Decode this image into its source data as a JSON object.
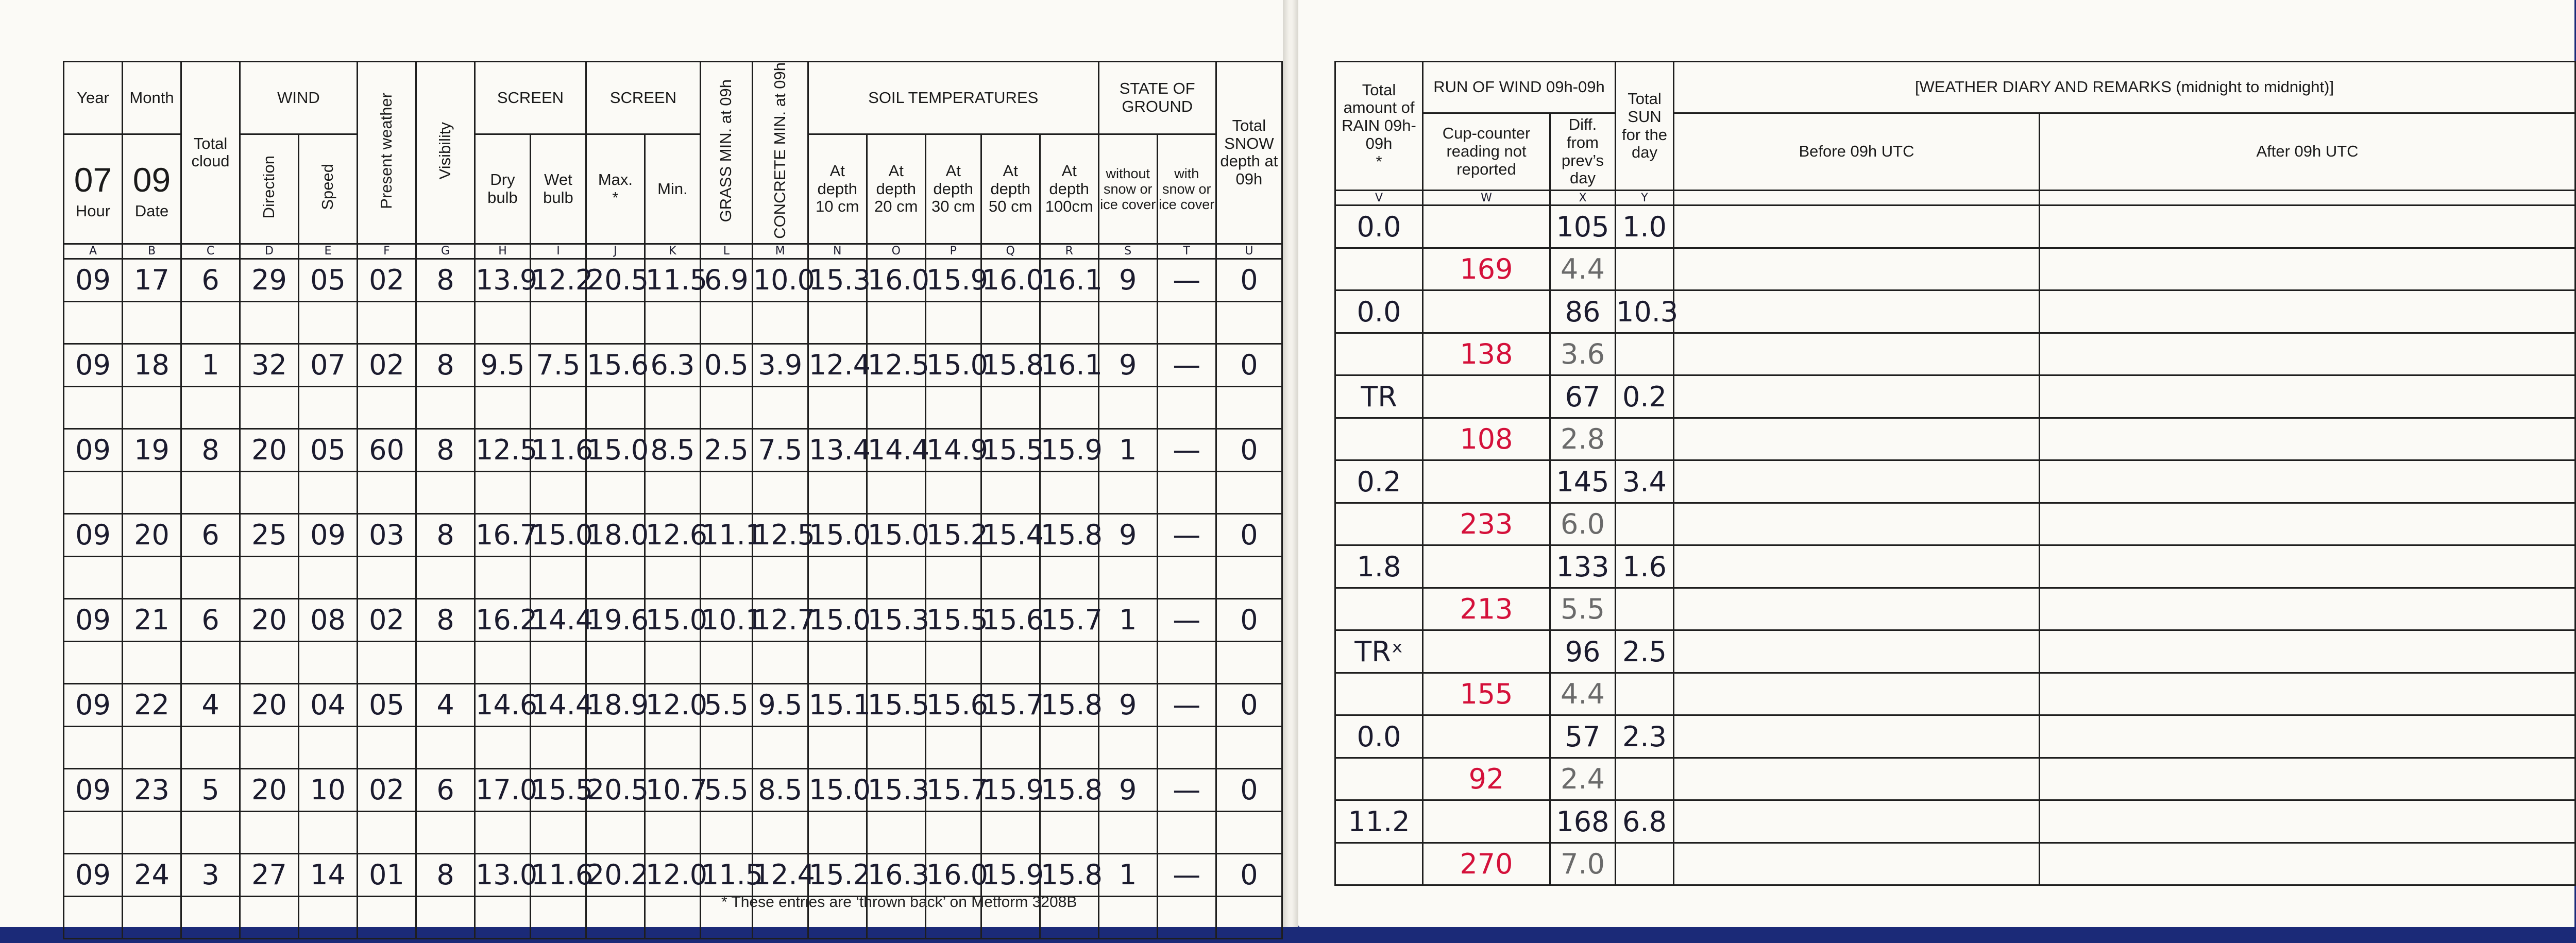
{
  "left": {
    "headers": {
      "year": "Year",
      "year_value": "07",
      "hour": "Hour",
      "month": "Month",
      "month_value": "09",
      "date": "Date",
      "total_cloud": "Total cloud",
      "wind": "WIND",
      "direction": "Direction",
      "speed": "Speed",
      "present_weather": "Present weather",
      "visibility": "Visibility",
      "screen1": "SCREEN",
      "dry_bulb": "Dry bulb",
      "wet_bulb": "Wet bulb",
      "screen2": "SCREEN",
      "max": "Max.",
      "max_mark": "*",
      "min": "Min.",
      "grass_min": "GRASS MIN. at 09h",
      "concrete_min": "CONCRETE MIN. at 09h",
      "soil": "SOIL TEMPERATURES",
      "soil_10": "At depth 10 cm",
      "soil_20": "At depth 20 cm",
      "soil_30": "At depth 30 cm",
      "soil_50": "At depth 50 cm",
      "soil_100": "At depth 100cm",
      "state_ground": "STATE OF GROUND",
      "without_snow": "without snow or ice cover",
      "with_snow": "with snow or ice cover",
      "total_snow": "Total SNOW depth at 09h"
    },
    "letters": [
      "A",
      "B",
      "C",
      "D",
      "E",
      "F",
      "G",
      "H",
      "I",
      "J",
      "K",
      "L",
      "M",
      "N",
      "O",
      "P",
      "Q",
      "R",
      "S",
      "T",
      "U"
    ],
    "rows": [
      [
        "09",
        "17",
        "6",
        "29",
        "05",
        "02",
        "8",
        "13.9",
        "12.2",
        "20.5",
        "11.5",
        "6.9",
        "10.0",
        "15.3",
        "16.0",
        "15.9",
        "16.0",
        "16.1",
        "9",
        "—",
        "0"
      ],
      [
        "09",
        "18",
        "1",
        "32",
        "07",
        "02",
        "8",
        "9.5",
        "7.5",
        "15.6",
        "6.3",
        "0.5",
        "3.9",
        "12.4",
        "12.5",
        "15.0",
        "15.8",
        "16.1",
        "9",
        "—",
        "0"
      ],
      [
        "09",
        "19",
        "8",
        "20",
        "05",
        "60",
        "8",
        "12.5",
        "11.6",
        "15.0",
        "8.5",
        "2.5",
        "7.5",
        "13.4",
        "14.4",
        "14.9",
        "15.5",
        "15.9",
        "1",
        "—",
        "0"
      ],
      [
        "09",
        "20",
        "6",
        "25",
        "09",
        "03",
        "8",
        "16.7",
        "15.0",
        "18.0",
        "12.6",
        "11.1",
        "12.5",
        "15.0",
        "15.0",
        "15.2",
        "15.4",
        "15.8",
        "9",
        "—",
        "0"
      ],
      [
        "09",
        "21",
        "6",
        "20",
        "08",
        "02",
        "8",
        "16.2",
        "14.4",
        "19.6",
        "15.0",
        "10.1",
        "12.7",
        "15.0",
        "15.3",
        "15.5",
        "15.6",
        "15.7",
        "1",
        "—",
        "0"
      ],
      [
        "09",
        "22",
        "4",
        "20",
        "04",
        "05",
        "4",
        "14.6",
        "14.4",
        "18.9",
        "12.0",
        "5.5",
        "9.5",
        "15.1",
        "15.5",
        "15.6",
        "15.7",
        "15.8",
        "9",
        "—",
        "0"
      ],
      [
        "09",
        "23",
        "5",
        "20",
        "10",
        "02",
        "6",
        "17.0",
        "15.5",
        "20.5",
        "10.7",
        "5.5",
        "8.5",
        "15.0",
        "15.3",
        "15.7",
        "15.9",
        "15.8",
        "9",
        "—",
        "0"
      ],
      [
        "09",
        "24",
        "3",
        "27",
        "14",
        "01",
        "8",
        "13.0",
        "11.6",
        "20.2",
        "12.0",
        "11.5",
        "12.4",
        "15.2",
        "16.3",
        "16.0",
        "15.9",
        "15.8",
        "1",
        "—",
        "0"
      ]
    ],
    "footnote": "* These entries are ‘thrown back’ on Metform 3208B"
  },
  "right": {
    "headers": {
      "total_rain": "Total amount of RAIN 09h-09h",
      "rain_mark": "*",
      "run_of_wind": "RUN OF WIND 09h-09h",
      "cup_counter": "Cup-counter reading not reported",
      "diff": "Diff. from prev’s day",
      "total_sun": "Total SUN for the day",
      "diary": "[WEATHER DIARY AND REMARKS (midnight to midnight)]",
      "before": "Before 09h UTC",
      "after": "After 09h UTC"
    },
    "letters": [
      "V",
      "W",
      "X",
      "Y",
      "",
      ""
    ],
    "rows": [
      {
        "rain": "0.0",
        "run": "105",
        "sun": "1.0",
        "cup": "169",
        "diff": "4.4"
      },
      {
        "rain": "0.0",
        "run": "86",
        "sun": "10.3",
        "cup": "138",
        "diff": "3.6"
      },
      {
        "rain": "TR",
        "run": "67",
        "sun": "0.2",
        "cup": "108",
        "diff": "2.8"
      },
      {
        "rain": "0.2",
        "run": "145",
        "sun": "3.4",
        "cup": "233",
        "diff": "6.0"
      },
      {
        "rain": "1.8",
        "run": "133",
        "sun": "1.6",
        "cup": "213",
        "diff": "5.5"
      },
      {
        "rain": "TRˣ",
        "run": "96",
        "sun": "2.5",
        "cup": "155",
        "diff": "4.4"
      },
      {
        "rain": "0.0",
        "run": "57",
        "sun": "2.3",
        "cup": "92",
        "diff": "2.4"
      },
      {
        "rain": "11.2",
        "run": "168",
        "sun": "6.8",
        "cup": "270",
        "diff": "7.0"
      }
    ]
  },
  "colors": {
    "ink": "#1b1b2e",
    "red_ink": "#d4103a",
    "pencil": "#6a6a6a",
    "paper": "#fbfaf6",
    "background": "#1b2a78"
  }
}
